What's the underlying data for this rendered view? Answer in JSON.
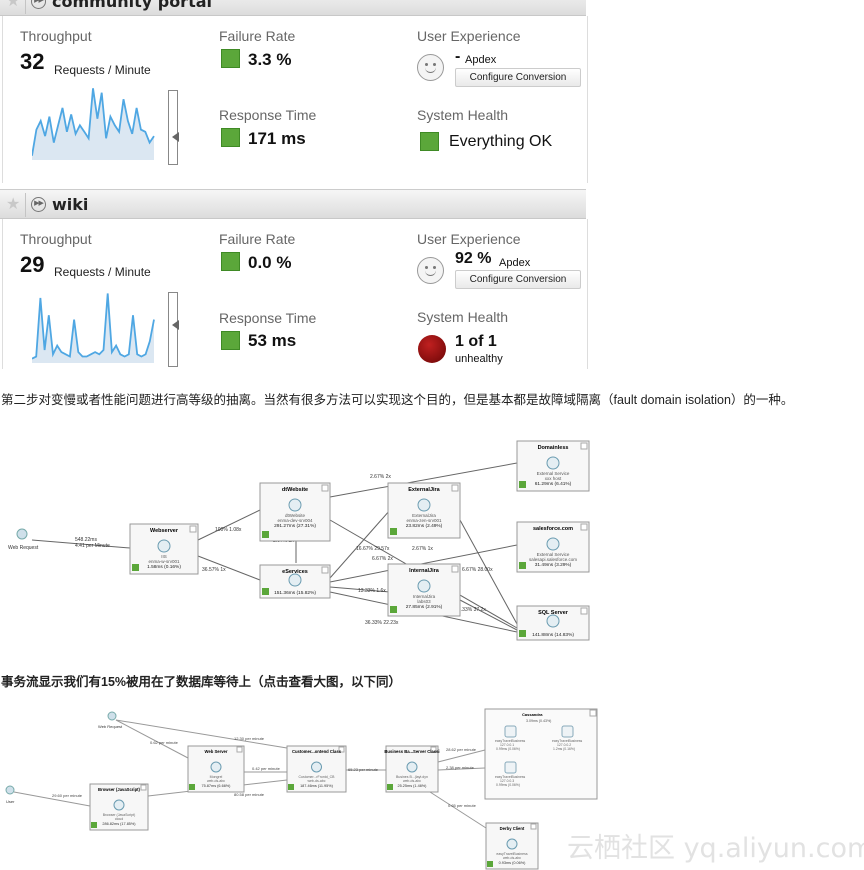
{
  "panels": [
    {
      "name": "community portal",
      "throughput": "32",
      "unit": "Requests / Minute",
      "labels": {
        "throughput": "Throughput",
        "failure": "Failure Rate",
        "response": "Response Time",
        "ux": "User Experience",
        "health": "System Health"
      },
      "failure": "3.3 %",
      "response": "171 ms",
      "apdex_value": "-",
      "apdex": "Apdex",
      "configure": "Configure Conversion",
      "health_text": "Everything OK",
      "spark": [
        2,
        14,
        18,
        11,
        20,
        8,
        16,
        24,
        13,
        21,
        12,
        16,
        13,
        10,
        33,
        19,
        31,
        10,
        20,
        16,
        13,
        28,
        18,
        12,
        24,
        14,
        13,
        8,
        11
      ]
    },
    {
      "name": "wiki",
      "throughput": "29",
      "unit": "Requests / Minute",
      "labels": {
        "throughput": "Throughput",
        "failure": "Failure Rate",
        "response": "Response Time",
        "ux": "User Experience",
        "health": "System Health"
      },
      "failure": "0.0 %",
      "response": "53 ms",
      "apdex_value": "92 %",
      "apdex": "Apdex",
      "configure": "Configure Conversion",
      "health_count": "1 of 1",
      "health_sub": "unhealthy",
      "spark": [
        2,
        3,
        30,
        6,
        22,
        4,
        8,
        5,
        4,
        3,
        20,
        5,
        3,
        3,
        4,
        5,
        4,
        6,
        32,
        5,
        8,
        4,
        3,
        4,
        22,
        4,
        3,
        4,
        10,
        20
      ]
    }
  ],
  "text": {
    "p1": "第二步对变慢或者性能问题进行高等级的抽离。当然有很多方法可以实现这个目的，但是基本都是故障域隔离（fault domain isolation）的一种。",
    "p2": "事务流显示我们有15%被用在了数据库等待上（点击查看大图，以下同）",
    "watermark": "云栖社区 yq.aliyun.com"
  },
  "flow1": {
    "nodes": [
      {
        "title": "Webserver",
        "l1": "IIS",
        "l2": "enma-w-srv001",
        "l3": "1.58ms (0.16%)"
      },
      {
        "title": "dtWebsite",
        "l1": "dtWebsite",
        "l2": "enma-dev-srv004",
        "l3": "291.27ms (27.31%)"
      },
      {
        "title": "eServices",
        "l1": "",
        "l2": "",
        "l3": "151.36ms (15.82%)"
      },
      {
        "title": "ExternalJira",
        "l1": "ExternalJira",
        "l2": "enma-zen-srv001",
        "l3": "23.82ms (2.49%)"
      },
      {
        "title": "InternalJira",
        "l1": "InternalJira",
        "l2": "labs03",
        "l3": "27.85ms (2.91%)"
      },
      {
        "title": "DomainIess",
        "l1": "External Service",
        "l2": "xxx host",
        "l3": "61.29ms (6.41%)"
      },
      {
        "title": "salesforce.com",
        "l1": "External Service",
        "l2": "salesapi.salesforce.com",
        "l3": "31.49ms (3.29%)"
      },
      {
        "title": "SQL Server",
        "l1": "",
        "l2": "",
        "l3": "141.88ms (14.83%)"
      }
    ],
    "web_request": "Web Request",
    "edges": [
      "548.22ms",
      "4.41 per Minute",
      "100% 1.08x",
      "36.57% 1x",
      "2.67% 2x",
      "2.67% 2x",
      "16.67% 29.57x",
      "6.67% 2x",
      "2.67% 1x",
      "13.33% 1.6x",
      "36.33% 22.23x",
      "6.67% 28.00x",
      "3.33% 37.2x"
    ]
  },
  "flow2": {
    "nodes": [
      {
        "title": "Web Server",
        "l1": "Mongrel",
        "l2": "web-ds-abc",
        "l3": "75.87ms (6.66%)"
      },
      {
        "title": "Customer...ontend Class",
        "l1": "Customer...rFrontd_CB",
        "l2": "web-ds-abc",
        "l3": "187.46ms (11.95%)"
      },
      {
        "title": "Business Ba...Server Classi",
        "l1": "Busines B...(layt.dyn",
        "l2": "web-ds-abc",
        "l3": "25.25ms (1.46%)"
      },
      {
        "title": "Browser (JavaScript)",
        "l1": "Browser (JavaScript)",
        "l2": "cloud",
        "l3": "286.82ms (17.85%)"
      },
      {
        "title": "Cassandra",
        "l1": "",
        "l2": "",
        "l3": "3.09ms (0.43%)"
      },
      {
        "title": "Derby Client",
        "l1": "easyTravelBusiness",
        "l2": "web-ds-abc",
        "l3": "0.93ms (0.06%)"
      }
    ],
    "web_request": "Web Request",
    "user": "User",
    "edges": [
      "0.62 per minute",
      "12.30 per minute",
      "0.42 per minute",
      "80.58 per minute",
      "29.60 per minute",
      "65.23 per minute",
      "28.62 per minute",
      "2.38 per minute",
      "0.65 per minute"
    ],
    "cassandra_sub": [
      "easyTravelBusiness",
      "127.0.0.1",
      "0.99ms (0.06%)",
      "easyTravelBusiness",
      "127.0.0.2",
      "1.2ms (0.16%)",
      "easyTravelBusiness",
      "127.0.0.3",
      "0.99ms (0.06%)"
    ]
  }
}
